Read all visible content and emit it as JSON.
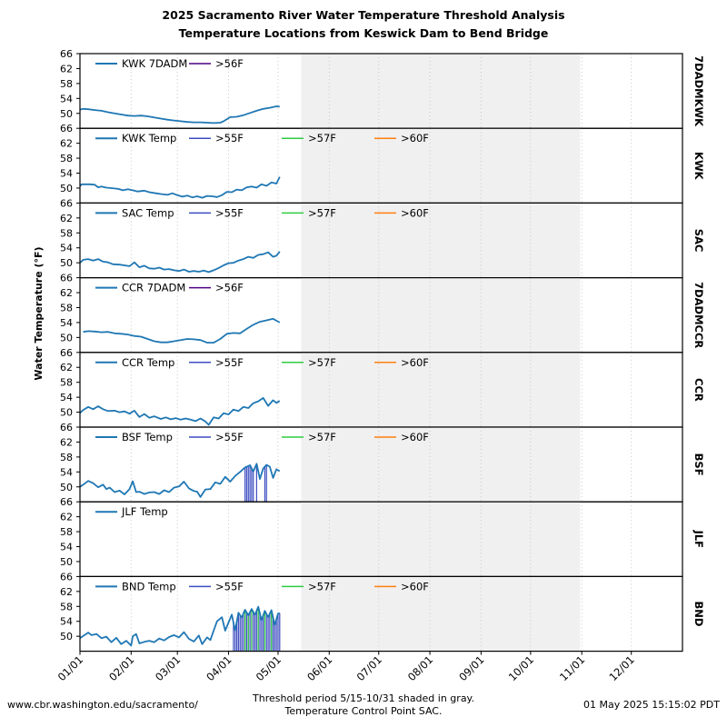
{
  "title_line1": "2025 Sacramento River Water Temperature Threshold Analysis",
  "title_line2": "Temperature Locations from Keswick Dam to Bend Bridge",
  "ylabel": "Water Temperature (°F)",
  "footer": {
    "left": "www.cbr.washington.edu/sacramento/",
    "center1": "Threshold period 5/15-10/31 shaded in gray.",
    "center2": "Temperature Control Point SAC.",
    "right": "01 May 2025 15:15:02 PDT"
  },
  "colors": {
    "series": "#1f77b4",
    "t55": "#3b4cc0",
    "t56": "#4b0082",
    "t57": "#2ecc40",
    "t60": "#ff7f0e",
    "shade": "#f0f0f0",
    "vgrid": "#c8c8c8"
  },
  "chart_data": {
    "type": "line",
    "x_tick_labels": [
      "01/01",
      "02/01",
      "03/01",
      "04/01",
      "05/01",
      "06/01",
      "07/01",
      "08/01",
      "09/01",
      "10/01",
      "11/01",
      "12/01"
    ],
    "x_tick_days": [
      1,
      32,
      60,
      91,
      121,
      152,
      182,
      213,
      244,
      274,
      305,
      335
    ],
    "xlim_days": [
      1,
      366
    ],
    "shade_days": [
      135,
      304
    ],
    "ylim": [
      46,
      66
    ],
    "ytick_labels": [
      "50",
      "54",
      "58",
      "62",
      "66"
    ],
    "panels": [
      {
        "id": "7DADMKWK",
        "legend": [
          {
            "label": "KWK 7DADM",
            "key": "series"
          },
          {
            "label": ">56F",
            "key": "t56"
          }
        ],
        "x": [
          1,
          3,
          6,
          10,
          14,
          18,
          22,
          26,
          30,
          34,
          38,
          42,
          46,
          50,
          54,
          58,
          62,
          66,
          70,
          74,
          78,
          82,
          86,
          88,
          92,
          96,
          100,
          104,
          108,
          112,
          116,
          120,
          122
        ],
        "values": [
          51,
          51.2,
          51.1,
          50.9,
          50.7,
          50.3,
          50,
          49.7,
          49.4,
          49.3,
          49.4,
          49.2,
          48.9,
          48.6,
          48.3,
          48.1,
          47.9,
          47.7,
          47.6,
          47.6,
          47.5,
          47.4,
          47.5,
          47.9,
          49,
          49.1,
          49.5,
          50.1,
          50.7,
          51.2,
          51.5,
          51.9,
          51.8
        ],
        "threshold_days": []
      },
      {
        "id": "KWK",
        "legend": [
          {
            "label": "KWK Temp",
            "key": "series"
          },
          {
            "label": ">55F",
            "key": "t55"
          },
          {
            "label": ">57F",
            "key": "t57"
          },
          {
            "label": ">60F",
            "key": "t60"
          }
        ],
        "x": [
          1,
          2,
          4,
          7,
          10,
          12,
          14,
          17,
          20,
          24,
          27,
          30,
          33,
          36,
          40,
          43,
          47,
          50,
          54,
          57,
          60,
          63,
          66,
          69,
          72,
          75,
          78,
          81,
          84,
          87,
          90,
          93,
          96,
          99,
          102,
          105,
          108,
          111,
          114,
          117,
          120,
          122
        ],
        "values": [
          50.5,
          51,
          51,
          51,
          50.9,
          50.2,
          50.4,
          50.1,
          50,
          49.8,
          49.4,
          49.7,
          49.4,
          49.1,
          49.3,
          48.9,
          48.6,
          48.4,
          48.2,
          48.6,
          48.1,
          47.7,
          48,
          47.5,
          47.8,
          47.4,
          47.9,
          47.8,
          47.6,
          48.1,
          49,
          48.9,
          49.6,
          49.4,
          50.2,
          50.4,
          50.1,
          51,
          50.6,
          51.5,
          51.2,
          53
        ],
        "threshold_days": []
      },
      {
        "id": "SAC",
        "legend": [
          {
            "label": "SAC Temp",
            "key": "series"
          },
          {
            "label": ">55F",
            "key": "t55"
          },
          {
            "label": ">57F",
            "key": "t57"
          },
          {
            "label": ">60F",
            "key": "t60"
          }
        ],
        "x": [
          1,
          3,
          6,
          9,
          12,
          15,
          18,
          21,
          25,
          28,
          31,
          34,
          37,
          40,
          43,
          46,
          49,
          52,
          55,
          58,
          61,
          64,
          67,
          70,
          73,
          76,
          79,
          82,
          85,
          88,
          91,
          94,
          97,
          100,
          103,
          106,
          109,
          112,
          115,
          118,
          120,
          122
        ],
        "values": [
          50,
          50.8,
          51,
          50.6,
          51,
          50.3,
          50.1,
          49.6,
          49.5,
          49.3,
          49.1,
          50.1,
          48.8,
          49.2,
          48.5,
          48.4,
          48.7,
          48.2,
          48.3,
          48,
          47.8,
          48.2,
          47.6,
          47.8,
          47.6,
          47.9,
          47.5,
          48,
          48.6,
          49.3,
          49.9,
          50,
          50.6,
          51,
          51.6,
          51.3,
          52.1,
          52.3,
          52.8,
          51.6,
          51.9,
          53
        ],
        "threshold_days": []
      },
      {
        "id": "7DADMCCR",
        "legend": [
          {
            "label": "CCR 7DADM",
            "key": "series"
          },
          {
            "label": ">56F",
            "key": "t56"
          }
        ],
        "x": [
          3,
          6,
          10,
          14,
          18,
          22,
          26,
          30,
          34,
          38,
          42,
          46,
          50,
          54,
          58,
          62,
          66,
          70,
          74,
          78,
          82,
          86,
          90,
          94,
          98,
          102,
          106,
          110,
          114,
          118,
          120,
          122
        ],
        "values": [
          51.5,
          51.7,
          51.6,
          51.4,
          51.5,
          51.1,
          51,
          50.8,
          50.4,
          50.2,
          49.6,
          49,
          48.7,
          48.7,
          49,
          49.3,
          49.6,
          49.5,
          49.3,
          48.6,
          48.6,
          49.6,
          51,
          51.2,
          51.1,
          52.3,
          53.4,
          54.2,
          54.6,
          55,
          54.5,
          54
        ],
        "threshold_days": []
      },
      {
        "id": "CCR",
        "legend": [
          {
            "label": "CCR Temp",
            "key": "series"
          },
          {
            "label": ">55F",
            "key": "t55"
          },
          {
            "label": ">57F",
            "key": "t57"
          },
          {
            "label": ">60F",
            "key": "t60"
          }
        ],
        "x": [
          1,
          3,
          6,
          9,
          12,
          15,
          18,
          22,
          25,
          28,
          31,
          34,
          37,
          40,
          43,
          46,
          50,
          53,
          56,
          59,
          62,
          65,
          68,
          71,
          74,
          77,
          79,
          82,
          85,
          88,
          91,
          94,
          97,
          100,
          103,
          106,
          109,
          112,
          115,
          118,
          120,
          122
        ],
        "values": [
          49.8,
          50.6,
          51.4,
          50.8,
          51.6,
          50.8,
          50.3,
          50.4,
          50,
          50.2,
          49.6,
          50.4,
          48.7,
          49.5,
          48.5,
          48.9,
          48.2,
          48.6,
          48.1,
          48.4,
          48,
          48.3,
          48,
          47.6,
          48.3,
          47.5,
          46.6,
          48.6,
          48.3,
          49.7,
          49.4,
          50.7,
          50.3,
          51.4,
          51.1,
          52.4,
          52.9,
          53.8,
          51.7,
          53.2,
          52.5,
          53
        ],
        "threshold_days": []
      },
      {
        "id": "BSF",
        "legend": [
          {
            "label": "BSF Temp",
            "key": "series"
          },
          {
            "label": ">55F",
            "key": "t55"
          },
          {
            "label": ">57F",
            "key": "t57"
          },
          {
            "label": ">60F",
            "key": "t60"
          }
        ],
        "x": [
          1,
          3,
          6,
          9,
          12,
          15,
          17,
          19,
          22,
          25,
          28,
          31,
          33,
          35,
          37,
          40,
          43,
          46,
          49,
          52,
          55,
          58,
          61,
          64,
          67,
          70,
          72,
          74,
          77,
          80,
          83,
          86,
          89,
          92,
          95,
          98,
          101,
          104,
          106,
          108,
          110,
          112,
          114,
          116,
          118,
          120,
          122
        ],
        "values": [
          50,
          50.6,
          51.6,
          51,
          49.9,
          50.6,
          49.4,
          49.8,
          48.6,
          49,
          48,
          49.4,
          51.5,
          48.6,
          48.7,
          48.1,
          48.5,
          48.6,
          48.1,
          49.1,
          48.6,
          49.8,
          50.1,
          51.4,
          49.6,
          48.9,
          48.7,
          47.3,
          49.3,
          49.4,
          51.2,
          50.8,
          52.7,
          51.4,
          52.9,
          54,
          55.2,
          55.8,
          54.1,
          56.2,
          52.1,
          54.9,
          55.9,
          55.4,
          52.4,
          54.7,
          54.2
        ],
        "threshold_days": [
          101,
          102,
          103,
          104,
          105,
          106,
          108,
          113,
          114
        ]
      },
      {
        "id": "JLF",
        "legend": [
          {
            "label": "JLF Temp",
            "key": "series"
          }
        ],
        "x": [],
        "values": [],
        "threshold_days": []
      },
      {
        "id": "BND",
        "legend": [
          {
            "label": "BND Temp",
            "key": "series"
          },
          {
            "label": ">55F",
            "key": "t55"
          },
          {
            "label": ">57F",
            "key": "t57"
          },
          {
            "label": ">60F",
            "key": "t60"
          }
        ],
        "x": [
          1,
          3,
          6,
          8,
          11,
          14,
          17,
          20,
          23,
          26,
          29,
          32,
          33,
          35,
          37,
          40,
          43,
          46,
          49,
          52,
          55,
          58,
          61,
          64,
          67,
          70,
          73,
          75,
          78,
          80,
          82,
          84,
          87,
          89,
          91,
          93,
          95,
          97,
          99,
          101,
          103,
          105,
          107,
          109,
          111,
          113,
          115,
          117,
          119,
          121,
          122
        ],
        "values": [
          49.5,
          50.1,
          51,
          50.3,
          50.6,
          49.5,
          49.9,
          48.4,
          49.6,
          47.9,
          48.8,
          47.5,
          50,
          50.6,
          48.1,
          48.5,
          48.8,
          48.4,
          49.4,
          48.9,
          49.8,
          50.3,
          49.7,
          51.1,
          49.3,
          48.6,
          50.2,
          47.9,
          49.7,
          49,
          51.5,
          54,
          55.1,
          51.5,
          53.7,
          55.8,
          51.5,
          56.3,
          55,
          57.1,
          55.6,
          57.3,
          55.7,
          57.9,
          54.3,
          56.8,
          55.1,
          57,
          53,
          56.1,
          56.2
        ],
        "threshold_days": [
          94,
          95,
          96,
          97,
          98,
          99,
          100,
          101,
          102,
          103,
          104,
          105,
          106,
          107,
          108,
          109,
          110,
          111,
          112,
          113,
          114,
          115,
          116,
          117,
          118,
          119,
          120,
          121,
          122
        ],
        "threshold57_days": [
          101,
          103,
          105,
          109,
          113,
          117
        ]
      }
    ]
  }
}
